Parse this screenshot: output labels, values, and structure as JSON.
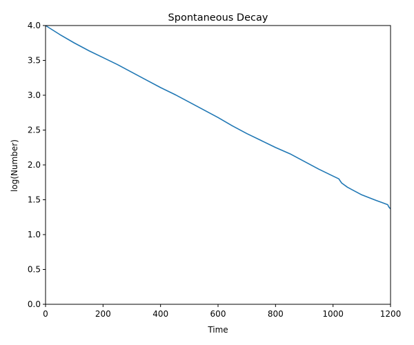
{
  "chart_data": {
    "type": "line",
    "title": "Spontaneous Decay",
    "xlabel": "Time",
    "ylabel": "log(Number)",
    "xlim": [
      0,
      1200
    ],
    "ylim": [
      0.0,
      4.0
    ],
    "grid": false,
    "x_ticks": [
      "0",
      "200",
      "400",
      "600",
      "800",
      "1000",
      "1200"
    ],
    "y_ticks": [
      "0.0",
      "0.5",
      "1.0",
      "1.5",
      "2.0",
      "2.5",
      "3.0",
      "3.5",
      "4.0"
    ],
    "series": [
      {
        "color": "#1f77b4",
        "x": [
          0,
          50,
          100,
          150,
          200,
          250,
          300,
          350,
          400,
          450,
          500,
          550,
          600,
          650,
          700,
          750,
          800,
          850,
          900,
          950,
          1000,
          1020,
          1030,
          1050,
          1100,
          1150,
          1170,
          1190,
          1195,
          1200
        ],
        "y": [
          4.0,
          3.87,
          3.75,
          3.64,
          3.54,
          3.44,
          3.33,
          3.22,
          3.11,
          3.01,
          2.9,
          2.79,
          2.68,
          2.56,
          2.45,
          2.35,
          2.25,
          2.16,
          2.05,
          1.94,
          1.84,
          1.8,
          1.74,
          1.68,
          1.57,
          1.49,
          1.46,
          1.43,
          1.39,
          1.37
        ]
      }
    ]
  }
}
